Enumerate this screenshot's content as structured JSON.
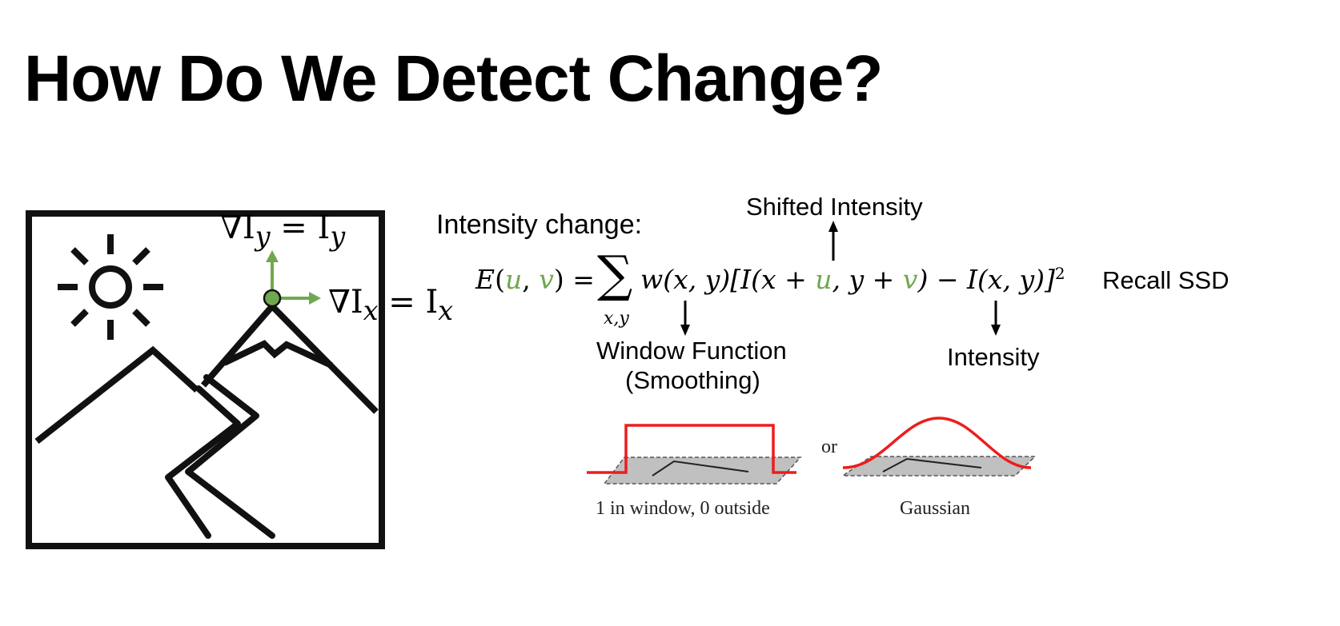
{
  "slide": {
    "title": "How Do We Detect Change?"
  },
  "left_figure": {
    "grad_y": {
      "nabla": "∇I",
      "sub1": "y",
      "eq": " = I",
      "sub2": "y"
    },
    "grad_x": {
      "nabla": "∇I",
      "sub1": "x",
      "eq": " = I",
      "sub2": "x"
    },
    "colors": {
      "arrow": "#70a84f",
      "point": "#70a84f",
      "stroke": "#111111"
    }
  },
  "equation": {
    "intro": "Intensity change:",
    "lhs_E": "E",
    "lhs_open": "(",
    "u": "u",
    "comma": ", ",
    "v": "v",
    "lhs_close": ") =",
    "sum_symbol": "∑",
    "sum_sub": "x,y",
    "window_term": "w(x, y)",
    "bracket_open": "[I(x + ",
    "mid": ", y + ",
    "rest": ") − I(x, y)]",
    "power": "2",
    "shifted_label": "Shifted Intensity",
    "window_label_1": "Window Function",
    "window_label_2": "(Smoothing)",
    "intensity_label": "Intensity",
    "recall": "Recall SSD"
  },
  "window_plots": {
    "box_caption": "1 in window, 0 outside",
    "or_text": "or",
    "gauss_caption": "Gaussian",
    "curve_color": "#ee1c1c",
    "plane_color": "#c0c0c0"
  }
}
